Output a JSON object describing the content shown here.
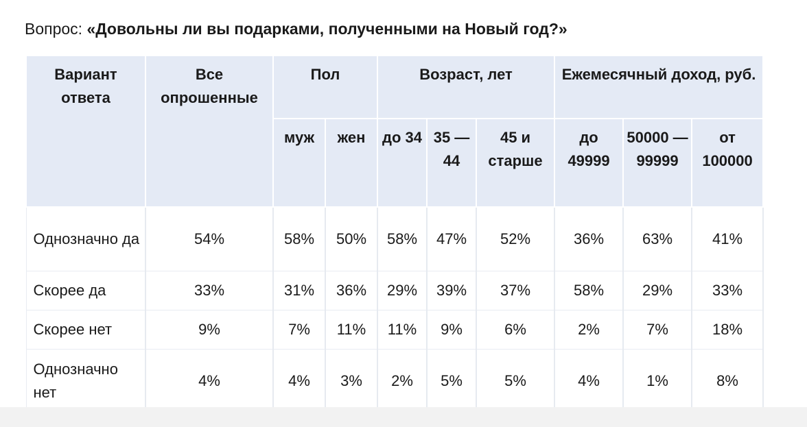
{
  "question": {
    "label": "Вопрос: ",
    "text": "«Довольны ли вы подарками, полученными на Новый год?»"
  },
  "table": {
    "headers": {
      "answer": "Вариант ответа",
      "all": "Все опрошенные",
      "gender": "Пол",
      "age": "Возраст, лет",
      "income": "Ежемесячный доход, руб."
    },
    "subheaders": {
      "male": "муж",
      "female": "жен",
      "age_1": "до 34",
      "age_2": "35 — 44",
      "age_3": "45 и старше",
      "income_1": "до 49999",
      "income_2": "50000 — 99999",
      "income_3": "от 100000"
    },
    "rows": [
      {
        "label": "Однозначно да",
        "values": [
          "54%",
          "58%",
          "50%",
          "58%",
          "47%",
          "52%",
          "36%",
          "63%",
          "41%"
        ]
      },
      {
        "label": "Скорее да",
        "values": [
          "33%",
          "31%",
          "36%",
          "29%",
          "39%",
          "37%",
          "58%",
          "29%",
          "33%"
        ]
      },
      {
        "label": "Скорее нет",
        "values": [
          "9%",
          "7%",
          "11%",
          "11%",
          "9%",
          "6%",
          "2%",
          "7%",
          "18%"
        ]
      },
      {
        "label": "Однозначно нет",
        "values": [
          "4%",
          "4%",
          "3%",
          "2%",
          "5%",
          "5%",
          "4%",
          "1%",
          "8%"
        ]
      }
    ]
  }
}
